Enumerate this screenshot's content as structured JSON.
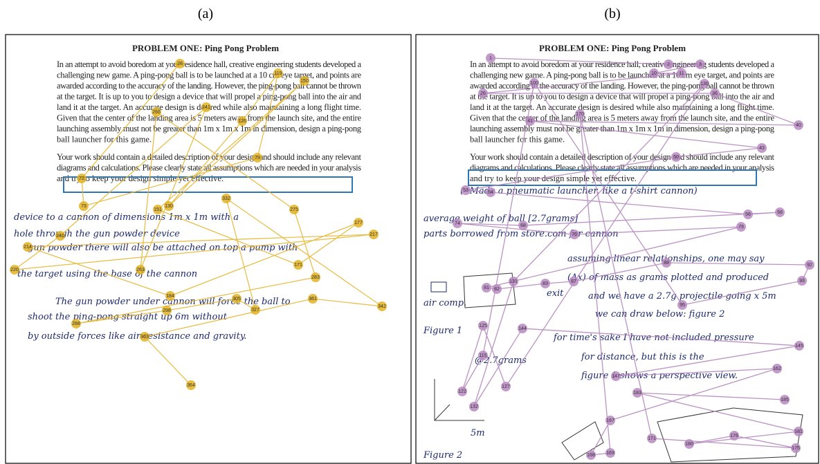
{
  "panels": [
    {
      "label": "(a)",
      "title": "PROBLEM ONE: Ping Pong Problem",
      "paragraphs": [
        [
          "In an attempt to avoid boredom at your residence hall, creative engineering students developed a",
          "challenging new game. A ping-pong ball is to be launched at a 10 cm eye target, and points are",
          "awarded according to the accuracy of the landing. However, the ping-pong ball cannot be thrown",
          "at the target. It is up to you to design a device that will propel a ping-pong ball into the air and",
          "land it at the target. An accurate design is desired while also maintaining a long flight time.",
          "Given that the center of the landing area is 5 meters away from the launch site, and the entire",
          "launching assembly must not be greater than 1m x 1m x 1m in dimension, design a ping-pong",
          "ball launcher for this game."
        ],
        [
          "Your work should contain a detailed description of your design and should include any relevant",
          "diagrams and calculations. Please clearly state all assumptions which are needed in your analysis",
          "and try to keep your design simple yet effective."
        ]
      ],
      "handwriting": [
        "device to a cannon of dimensions 1m x 1m with a",
        "hole through the gun powder device",
        "gun powder there will also be attached on top a pump with",
        "the target using the base of the cannon",
        "The gun powder under cannon will force the ball to",
        "shoot the ping-pong straight up 6m without",
        "by outside forces like air-resistance and gravity."
      ],
      "fixations": [
        28,
        72,
        73,
        79,
        119,
        126,
        130,
        150,
        151,
        171,
        177,
        184,
        214,
        217,
        220,
        240,
        241,
        263,
        266,
        275,
        283,
        288,
        298,
        305,
        327,
        332,
        342,
        361,
        363,
        364
      ]
    },
    {
      "label": "(b)",
      "title": "PROBLEM ONE: Ping Pong Problem",
      "paragraphs": [
        [
          "In an attempt to avoid boredom at your residence hall, creative engineering students developed a",
          "challenging new game. A ping-pong ball is to be launched at a 10 cm eye target, and points are",
          "awarded according to the accuracy of the landing. However, the ping-pong ball cannot be thrown",
          "at the target. It is up to you to design a device that will propel a ping-pong ball into the air and",
          "land it at the target. An accurate design is desired while also maintaining a long flight time.",
          "Given that the center of the landing area is 5 meters away from the launch site, and the entire",
          "launching assembly must not be greater than 1m x 1m x 1m in dimension, design a ping-pong",
          "ball launcher for this game."
        ],
        [
          "Your work should contain a detailed description of your design and should include any relevant",
          "diagrams and calculations. Please clearly state all assumptions which are needed in your analysis",
          "and try to keep your design simple yet effective."
        ]
      ],
      "handwriting": [
        "(- Made a pneumatic launcher, like a t-shirt cannon)",
        "average weight of ball [2.7grams]",
        "parts borrowed from store.com for cannon",
        "assuming linear relationships, one may say",
        "(Δx) of mass as grams plotted and produced",
        "and we have a 2.7g projectile going x 5m",
        "we can draw below: figure 2",
        "for time's sake I have not included pressure",
        "for distance, but this is the",
        "figure 1 shows a perspective view.",
        "air comp.",
        "exit",
        "Figure 1",
        "Figure 2",
        "5m",
        "@2.7grams"
      ],
      "fixations": [
        1,
        2,
        3,
        10,
        11,
        26,
        36,
        40,
        41,
        43,
        50,
        53,
        54,
        56,
        58,
        68,
        74,
        76,
        79,
        81,
        82,
        83,
        87,
        88,
        92,
        93,
        95,
        100,
        115,
        122,
        125,
        127,
        130,
        131,
        132,
        144,
        145,
        147,
        162,
        167,
        168,
        169,
        170,
        171,
        175,
        176,
        180,
        181,
        183,
        185
      ]
    }
  ]
}
